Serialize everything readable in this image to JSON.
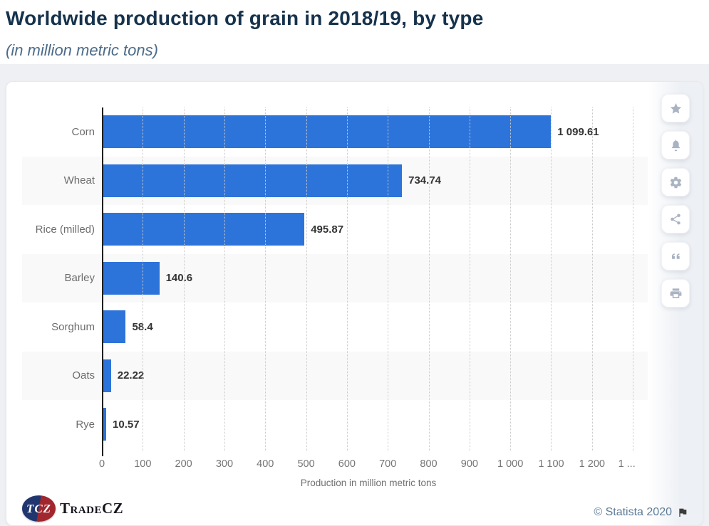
{
  "header": {
    "title": "Worldwide production of grain in 2018/19, by type",
    "subtitle": "(in million metric tons)"
  },
  "chart_data": {
    "type": "bar",
    "orientation": "horizontal",
    "title": "Worldwide production of grain in 2018/19, by type",
    "subtitle": "(in million metric tons)",
    "categories": [
      "Corn",
      "Wheat",
      "Rice (milled)",
      "Barley",
      "Sorghum",
      "Oats",
      "Rye"
    ],
    "values": [
      1099.61,
      734.74,
      495.87,
      140.6,
      58.4,
      22.22,
      10.57
    ],
    "value_labels": [
      "1 099.61",
      "734.74",
      "495.87",
      "140.6",
      "58.4",
      "22.22",
      "10.57"
    ],
    "xlabel": "Production in million metric tons",
    "x_tick_values": [
      0,
      100,
      200,
      300,
      400,
      500,
      600,
      700,
      800,
      900,
      1000,
      1100,
      1200,
      1300
    ],
    "x_tick_labels": [
      "0",
      "100",
      "200",
      "300",
      "400",
      "500",
      "600",
      "700",
      "800",
      "900",
      "1 000",
      "1 100",
      "1 200",
      "1 ..."
    ],
    "xlim": [
      0,
      1305
    ],
    "grid": "vertical-dotted",
    "legend": "none",
    "bar_color": "#2d74da",
    "row_stripe_color": "#f9f9f9"
  },
  "toolbar": {
    "buttons": [
      {
        "id": "favorite",
        "icon": "star-icon"
      },
      {
        "id": "alert",
        "icon": "bell-icon"
      },
      {
        "id": "settings",
        "icon": "gear-icon"
      },
      {
        "id": "share",
        "icon": "share-icon"
      },
      {
        "id": "cite",
        "icon": "quote-icon"
      },
      {
        "id": "print",
        "icon": "printer-icon"
      }
    ]
  },
  "footer": {
    "logo_badge": "TCZ",
    "logo_text": "TradeCZ",
    "copyright": "© Statista 2020"
  }
}
